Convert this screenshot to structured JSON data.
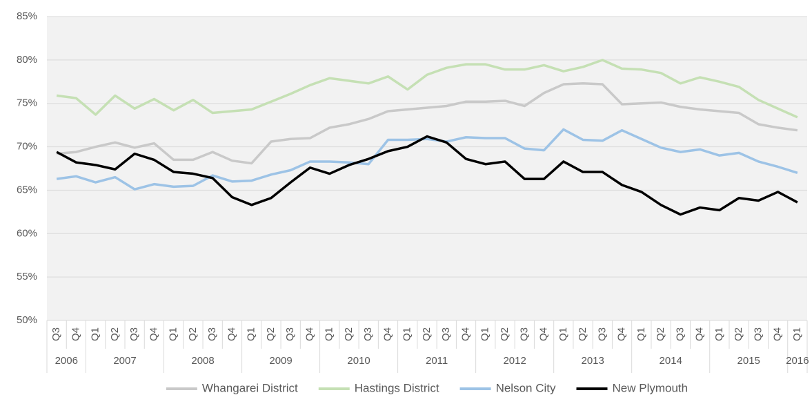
{
  "chart_data": {
    "type": "line",
    "categories": [
      "Q3",
      "Q4",
      "Q1",
      "Q2",
      "Q3",
      "Q4",
      "Q1",
      "Q2",
      "Q3",
      "Q4",
      "Q1",
      "Q2",
      "Q3",
      "Q4",
      "Q1",
      "Q2",
      "Q3",
      "Q4",
      "Q1",
      "Q2",
      "Q3",
      "Q4",
      "Q1",
      "Q2",
      "Q3",
      "Q4",
      "Q1",
      "Q2",
      "Q3",
      "Q4",
      "Q1",
      "Q2",
      "Q3",
      "Q4",
      "Q1",
      "Q2",
      "Q3",
      "Q4",
      "Q1"
    ],
    "years": [
      "2006",
      "2007",
      "2008",
      "2009",
      "2010",
      "2011",
      "2012",
      "2013",
      "2014",
      "2015",
      "2016"
    ],
    "series": [
      {
        "name": "Whangarei District",
        "color": "#c9c9c9",
        "values": [
          69.2,
          69.4,
          70.0,
          70.5,
          69.9,
          70.4,
          68.5,
          68.5,
          69.4,
          68.4,
          68.1,
          70.6,
          70.9,
          71.0,
          72.2,
          72.6,
          73.2,
          74.1,
          74.3,
          74.5,
          74.7,
          75.2,
          75.2,
          75.3,
          74.7,
          76.2,
          77.2,
          77.3,
          77.2,
          74.9,
          75.0,
          75.1,
          74.6,
          74.3,
          74.1,
          73.9,
          72.6,
          72.2,
          71.9
        ]
      },
      {
        "name": "Hastings District",
        "color": "#c5e0b4",
        "values": [
          75.9,
          75.6,
          73.7,
          75.9,
          74.4,
          75.5,
          74.2,
          75.4,
          73.9,
          74.1,
          74.3,
          75.2,
          76.1,
          77.1,
          77.9,
          77.6,
          77.3,
          78.1,
          76.6,
          78.3,
          79.1,
          79.5,
          79.5,
          78.9,
          78.9,
          79.4,
          78.7,
          79.2,
          80.0,
          79.0,
          78.9,
          78.5,
          77.3,
          78.0,
          77.5,
          76.9,
          75.4,
          74.4,
          73.4
        ]
      },
      {
        "name": "Nelson City",
        "color": "#9dc3e6",
        "values": [
          66.3,
          66.6,
          65.9,
          66.5,
          65.1,
          65.7,
          65.4,
          65.5,
          66.7,
          66.0,
          66.1,
          66.8,
          67.3,
          68.3,
          68.3,
          68.2,
          68.0,
          70.8,
          70.8,
          70.9,
          70.6,
          71.1,
          71.0,
          71.0,
          69.8,
          69.6,
          72.0,
          70.8,
          70.7,
          71.9,
          70.9,
          69.9,
          69.4,
          69.7,
          69.0,
          69.3,
          68.3,
          67.7,
          67.0
        ]
      },
      {
        "name": "New Plymouth",
        "color": "#000000",
        "values": [
          69.4,
          68.2,
          67.9,
          67.4,
          69.2,
          68.5,
          67.1,
          66.9,
          66.4,
          64.2,
          63.3,
          64.1,
          65.9,
          67.6,
          66.9,
          67.9,
          68.6,
          69.5,
          70.0,
          71.2,
          70.5,
          68.6,
          68.0,
          68.3,
          66.3,
          66.3,
          68.3,
          67.1,
          67.1,
          65.6,
          64.8,
          63.3,
          62.2,
          63.0,
          62.7,
          64.1,
          63.8,
          64.8,
          63.6
        ]
      }
    ],
    "ylim": [
      50,
      85
    ],
    "yticks": [
      {
        "value": 50,
        "label": "50%"
      },
      {
        "value": 55,
        "label": "55%"
      },
      {
        "value": 60,
        "label": "60%"
      },
      {
        "value": 65,
        "label": "65%"
      },
      {
        "value": 70,
        "label": "70%"
      },
      {
        "value": 75,
        "label": "75%"
      },
      {
        "value": 80,
        "label": "80%"
      },
      {
        "value": 85,
        "label": "85%"
      }
    ],
    "grid": true,
    "legend": "bottom"
  }
}
